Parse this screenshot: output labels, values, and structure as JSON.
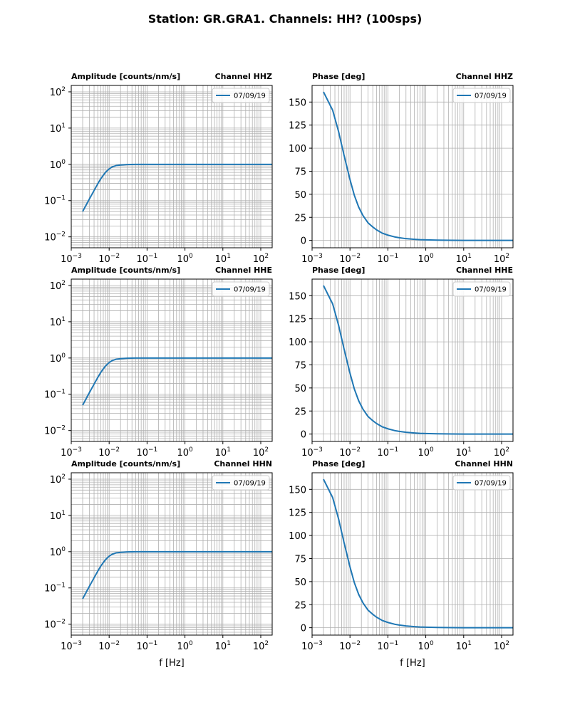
{
  "figure": {
    "title": "Station: GR.GRA1. Channels: HH? (100sps)"
  },
  "colors": {
    "series": "#1f77b4",
    "grid": "#b0b0b0",
    "axis": "#000000"
  },
  "chart_data": [
    {
      "type": "line",
      "row": 0,
      "col": 0,
      "title_left": "Amplitude [counts/nm/s]",
      "title_right": "Channel HHZ",
      "xscale": "log",
      "yscale": "log",
      "xlim": [
        0.001,
        200
      ],
      "ylim": [
        0.005,
        150
      ],
      "xlabel": "",
      "ylabel": "",
      "x_ticks": [
        {
          "base": "10",
          "exp": "−3",
          "value": 0.001
        },
        {
          "base": "10",
          "exp": "−2",
          "value": 0.01
        },
        {
          "base": "10",
          "exp": "−1",
          "value": 0.1
        },
        {
          "base": "10",
          "exp": "0",
          "value": 1
        },
        {
          "base": "10",
          "exp": "1",
          "value": 10
        },
        {
          "base": "10",
          "exp": "2",
          "value": 100
        }
      ],
      "y_ticks": [
        {
          "base": "10",
          "exp": "−2",
          "value": 0.01
        },
        {
          "base": "10",
          "exp": "−1",
          "value": 0.1
        },
        {
          "base": "10",
          "exp": "0",
          "value": 1
        },
        {
          "base": "10",
          "exp": "1",
          "value": 10
        },
        {
          "base": "10",
          "exp": "2",
          "value": 100
        }
      ],
      "legend": "top-right",
      "series": [
        {
          "name": "07/09/19",
          "x": [
            0.002,
            0.003,
            0.004,
            0.005,
            0.006,
            0.007,
            0.008,
            0.01,
            0.012,
            0.015,
            0.02,
            0.03,
            0.05,
            0.1,
            0.2,
            0.5,
            1,
            2,
            5,
            10,
            20,
            50,
            100,
            200
          ],
          "y": [
            0.05,
            0.11,
            0.19,
            0.29,
            0.4,
            0.5,
            0.6,
            0.75,
            0.85,
            0.92,
            0.96,
            0.985,
            0.995,
            1.0,
            1.0,
            1.0,
            1.0,
            1.0,
            1.0,
            1.0,
            1.0,
            1.0,
            1.0,
            1.0
          ]
        }
      ]
    },
    {
      "type": "line",
      "row": 0,
      "col": 1,
      "title_left": "Phase [deg]",
      "title_right": "Channel HHZ",
      "xscale": "log",
      "yscale": "linear",
      "xlim": [
        0.001,
        200
      ],
      "ylim": [
        -8,
        168
      ],
      "xlabel": "",
      "ylabel": "",
      "x_ticks": [
        {
          "base": "10",
          "exp": "−3",
          "value": 0.001
        },
        {
          "base": "10",
          "exp": "−2",
          "value": 0.01
        },
        {
          "base": "10",
          "exp": "−1",
          "value": 0.1
        },
        {
          "base": "10",
          "exp": "0",
          "value": 1
        },
        {
          "base": "10",
          "exp": "1",
          "value": 10
        },
        {
          "base": "10",
          "exp": "2",
          "value": 100
        }
      ],
      "y_ticks": [
        {
          "label": "0",
          "value": 0
        },
        {
          "label": "25",
          "value": 25
        },
        {
          "label": "50",
          "value": 50
        },
        {
          "label": "75",
          "value": 75
        },
        {
          "label": "100",
          "value": 100
        },
        {
          "label": "125",
          "value": 125
        },
        {
          "label": "150",
          "value": 150
        }
      ],
      "legend": "top-right",
      "series": [
        {
          "name": "07/09/19",
          "x": [
            0.002,
            0.0035,
            0.005,
            0.007,
            0.01,
            0.013,
            0.017,
            0.022,
            0.03,
            0.04,
            0.05,
            0.07,
            0.1,
            0.15,
            0.2,
            0.3,
            0.5,
            0.7,
            1,
            2,
            5,
            10,
            50,
            200
          ],
          "y": [
            161,
            141,
            118,
            92,
            66,
            49,
            36,
            27,
            19,
            14.5,
            11.5,
            8,
            5.7,
            3.8,
            2.9,
            1.9,
            1.2,
            0.8,
            0.6,
            0.3,
            0.1,
            0.05,
            0,
            0
          ]
        }
      ]
    },
    {
      "type": "line",
      "row": 1,
      "col": 0,
      "title_left": "Amplitude [counts/nm/s]",
      "title_right": "Channel HHE",
      "xscale": "log",
      "yscale": "log",
      "xlim": [
        0.001,
        200
      ],
      "ylim": [
        0.005,
        150
      ],
      "xlabel": "",
      "ylabel": "",
      "x_ticks": [
        {
          "base": "10",
          "exp": "−3",
          "value": 0.001
        },
        {
          "base": "10",
          "exp": "−2",
          "value": 0.01
        },
        {
          "base": "10",
          "exp": "−1",
          "value": 0.1
        },
        {
          "base": "10",
          "exp": "0",
          "value": 1
        },
        {
          "base": "10",
          "exp": "1",
          "value": 10
        },
        {
          "base": "10",
          "exp": "2",
          "value": 100
        }
      ],
      "y_ticks": [
        {
          "base": "10",
          "exp": "−2",
          "value": 0.01
        },
        {
          "base": "10",
          "exp": "−1",
          "value": 0.1
        },
        {
          "base": "10",
          "exp": "0",
          "value": 1
        },
        {
          "base": "10",
          "exp": "1",
          "value": 10
        },
        {
          "base": "10",
          "exp": "2",
          "value": 100
        }
      ],
      "legend": "top-right",
      "series": [
        {
          "name": "07/09/19",
          "x": [
            0.002,
            0.003,
            0.004,
            0.005,
            0.006,
            0.007,
            0.008,
            0.01,
            0.012,
            0.015,
            0.02,
            0.03,
            0.05,
            0.1,
            0.2,
            0.5,
            1,
            2,
            5,
            10,
            20,
            50,
            100,
            200
          ],
          "y": [
            0.05,
            0.11,
            0.19,
            0.29,
            0.4,
            0.5,
            0.6,
            0.75,
            0.85,
            0.92,
            0.96,
            0.985,
            0.995,
            1.0,
            1.0,
            1.0,
            1.0,
            1.0,
            1.0,
            1.0,
            1.0,
            1.0,
            1.0,
            1.0
          ]
        }
      ]
    },
    {
      "type": "line",
      "row": 1,
      "col": 1,
      "title_left": "Phase [deg]",
      "title_right": "Channel HHE",
      "xscale": "log",
      "yscale": "linear",
      "xlim": [
        0.001,
        200
      ],
      "ylim": [
        -8,
        168
      ],
      "xlabel": "",
      "ylabel": "",
      "x_ticks": [
        {
          "base": "10",
          "exp": "−3",
          "value": 0.001
        },
        {
          "base": "10",
          "exp": "−2",
          "value": 0.01
        },
        {
          "base": "10",
          "exp": "−1",
          "value": 0.1
        },
        {
          "base": "10",
          "exp": "0",
          "value": 1
        },
        {
          "base": "10",
          "exp": "1",
          "value": 10
        },
        {
          "base": "10",
          "exp": "2",
          "value": 100
        }
      ],
      "y_ticks": [
        {
          "label": "0",
          "value": 0
        },
        {
          "label": "25",
          "value": 25
        },
        {
          "label": "50",
          "value": 50
        },
        {
          "label": "75",
          "value": 75
        },
        {
          "label": "100",
          "value": 100
        },
        {
          "label": "125",
          "value": 125
        },
        {
          "label": "150",
          "value": 150
        }
      ],
      "legend": "top-right",
      "series": [
        {
          "name": "07/09/19",
          "x": [
            0.002,
            0.0035,
            0.005,
            0.007,
            0.01,
            0.013,
            0.017,
            0.022,
            0.03,
            0.04,
            0.05,
            0.07,
            0.1,
            0.15,
            0.2,
            0.3,
            0.5,
            0.7,
            1,
            2,
            5,
            10,
            50,
            200
          ],
          "y": [
            161,
            141,
            118,
            92,
            66,
            49,
            36,
            27,
            19,
            14.5,
            11.5,
            8,
            5.7,
            3.8,
            2.9,
            1.9,
            1.2,
            0.8,
            0.6,
            0.3,
            0.1,
            0.05,
            0,
            0
          ]
        }
      ]
    },
    {
      "type": "line",
      "row": 2,
      "col": 0,
      "title_left": "Amplitude [counts/nm/s]",
      "title_right": "Channel HHN",
      "xscale": "log",
      "yscale": "log",
      "xlim": [
        0.001,
        200
      ],
      "ylim": [
        0.005,
        150
      ],
      "xlabel": "f [Hz]",
      "ylabel": "",
      "x_ticks": [
        {
          "base": "10",
          "exp": "−3",
          "value": 0.001
        },
        {
          "base": "10",
          "exp": "−2",
          "value": 0.01
        },
        {
          "base": "10",
          "exp": "−1",
          "value": 0.1
        },
        {
          "base": "10",
          "exp": "0",
          "value": 1
        },
        {
          "base": "10",
          "exp": "1",
          "value": 10
        },
        {
          "base": "10",
          "exp": "2",
          "value": 100
        }
      ],
      "y_ticks": [
        {
          "base": "10",
          "exp": "−2",
          "value": 0.01
        },
        {
          "base": "10",
          "exp": "−1",
          "value": 0.1
        },
        {
          "base": "10",
          "exp": "0",
          "value": 1
        },
        {
          "base": "10",
          "exp": "1",
          "value": 10
        },
        {
          "base": "10",
          "exp": "2",
          "value": 100
        }
      ],
      "legend": "top-right",
      "series": [
        {
          "name": "07/09/19",
          "x": [
            0.002,
            0.003,
            0.004,
            0.005,
            0.006,
            0.007,
            0.008,
            0.01,
            0.012,
            0.015,
            0.02,
            0.03,
            0.05,
            0.1,
            0.2,
            0.5,
            1,
            2,
            5,
            10,
            20,
            50,
            100,
            200
          ],
          "y": [
            0.05,
            0.11,
            0.19,
            0.29,
            0.4,
            0.5,
            0.6,
            0.75,
            0.85,
            0.92,
            0.96,
            0.985,
            0.995,
            1.0,
            1.0,
            1.0,
            1.0,
            1.0,
            1.0,
            1.0,
            1.0,
            1.0,
            1.0,
            1.0
          ]
        }
      ]
    },
    {
      "type": "line",
      "row": 2,
      "col": 1,
      "title_left": "Phase [deg]",
      "title_right": "Channel HHN",
      "xscale": "log",
      "yscale": "linear",
      "xlim": [
        0.001,
        200
      ],
      "ylim": [
        -8,
        168
      ],
      "xlabel": "f [Hz]",
      "ylabel": "",
      "x_ticks": [
        {
          "base": "10",
          "exp": "−3",
          "value": 0.001
        },
        {
          "base": "10",
          "exp": "−2",
          "value": 0.01
        },
        {
          "base": "10",
          "exp": "−1",
          "value": 0.1
        },
        {
          "base": "10",
          "exp": "0",
          "value": 1
        },
        {
          "base": "10",
          "exp": "1",
          "value": 10
        },
        {
          "base": "10",
          "exp": "2",
          "value": 100
        }
      ],
      "y_ticks": [
        {
          "label": "0",
          "value": 0
        },
        {
          "label": "25",
          "value": 25
        },
        {
          "label": "50",
          "value": 50
        },
        {
          "label": "75",
          "value": 75
        },
        {
          "label": "100",
          "value": 100
        },
        {
          "label": "125",
          "value": 125
        },
        {
          "label": "150",
          "value": 150
        }
      ],
      "legend": "top-right",
      "series": [
        {
          "name": "07/09/19",
          "x": [
            0.002,
            0.0035,
            0.005,
            0.007,
            0.01,
            0.013,
            0.017,
            0.022,
            0.03,
            0.04,
            0.05,
            0.07,
            0.1,
            0.15,
            0.2,
            0.3,
            0.5,
            0.7,
            1,
            2,
            5,
            10,
            50,
            200
          ],
          "y": [
            161,
            141,
            118,
            92,
            66,
            49,
            36,
            27,
            19,
            14.5,
            11.5,
            8,
            5.7,
            3.8,
            2.9,
            1.9,
            1.2,
            0.8,
            0.6,
            0.3,
            0.1,
            0.05,
            0,
            0
          ]
        }
      ]
    }
  ]
}
